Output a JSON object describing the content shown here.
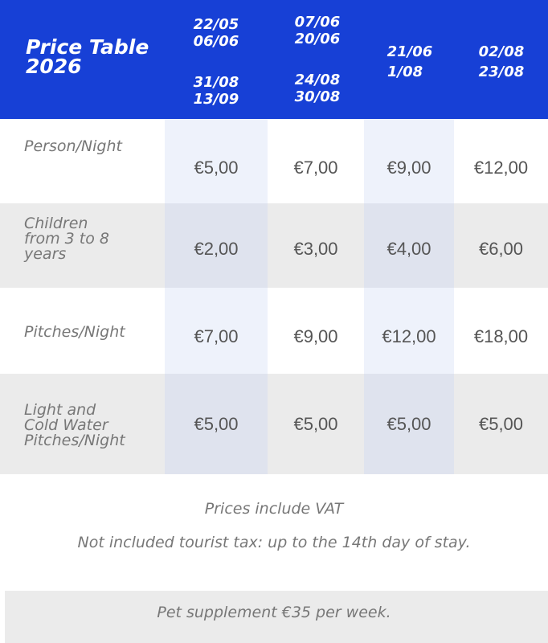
{
  "header": {
    "title_line1": "Price Table",
    "title_line2": "2026",
    "columns": [
      {
        "lines": [
          "22/05",
          "06/06",
          "31/08",
          "13/09"
        ]
      },
      {
        "lines": [
          "07/06",
          "20/06",
          "24/08",
          "30/08"
        ]
      },
      {
        "lines": [
          "21/06",
          "1/08"
        ]
      },
      {
        "lines": [
          "02/08",
          "23/08"
        ]
      }
    ]
  },
  "rows": [
    {
      "label": [
        "Person/Night"
      ],
      "prices": [
        "€5,00",
        "€7,00",
        "€9,00",
        "€12,00"
      ]
    },
    {
      "label": [
        "Children",
        "from 3 to 8",
        "years"
      ],
      "prices": [
        "€2,00",
        "€3,00",
        "€4,00",
        "€6,00"
      ]
    },
    {
      "label": [
        "Pitches/Night"
      ],
      "prices": [
        "€7,00",
        "€9,00",
        "€12,00",
        "€18,00"
      ]
    },
    {
      "label": [
        "Light and",
        "Cold Water",
        "Pitches/Night"
      ],
      "prices": [
        "€5,00",
        "€5,00",
        "€5,00",
        "€5,00"
      ]
    }
  ],
  "notes": {
    "vat": "Prices include VAT",
    "tax": "Not included tourist tax: up to the 14th day of stay.",
    "pet": "Pet supplement €35 per week."
  },
  "colors": {
    "header": "#1740d6",
    "alt_row": "#ebebeb",
    "tint_light": "#eef2fb",
    "tint_dark": "#dfe3ee"
  }
}
